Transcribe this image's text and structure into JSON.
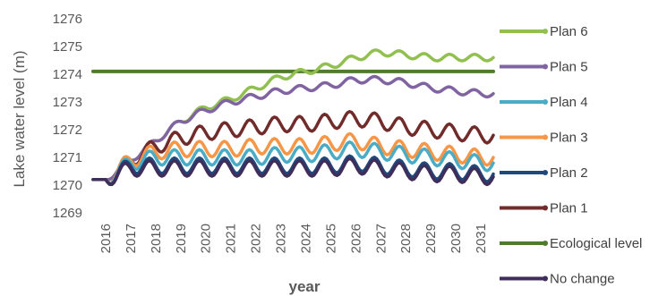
{
  "chart_data": {
    "type": "line",
    "xlabel": "year",
    "ylabel": "Lake water level (m)",
    "ylim": [
      1269,
      1276
    ],
    "yticks": [
      "1269",
      "1270",
      "1271",
      "1272",
      "1273",
      "1274",
      "1275",
      "1276"
    ],
    "x": [
      "2016",
      "2017",
      "2018",
      "2019",
      "2020",
      "2021",
      "2022",
      "2023",
      "2024",
      "2025",
      "2026",
      "2027",
      "2028",
      "2029",
      "2030",
      "2031"
    ],
    "grid": false,
    "legend_position": "right",
    "series": [
      {
        "name": "Plan 6",
        "color": "#92C050",
        "values": [
          1270.2,
          1270.9,
          1271.6,
          1272.3,
          1272.8,
          1273.1,
          1273.5,
          1273.9,
          1274.1,
          1274.3,
          1274.6,
          1274.8,
          1274.7,
          1274.6,
          1274.6,
          1274.6
        ]
      },
      {
        "name": "Plan 5",
        "color": "#8064A2",
        "values": [
          1270.2,
          1270.9,
          1271.6,
          1272.3,
          1272.7,
          1273.0,
          1273.2,
          1273.4,
          1273.5,
          1273.6,
          1273.8,
          1273.8,
          1273.7,
          1273.5,
          1273.4,
          1273.3
        ]
      },
      {
        "name": "Plan 4",
        "color": "#4BACC6",
        "values": [
          1270.2,
          1270.8,
          1271.0,
          1271.0,
          1271.0,
          1271.0,
          1271.0,
          1271.1,
          1271.1,
          1271.2,
          1271.3,
          1271.2,
          1271.1,
          1271.0,
          1270.9,
          1270.8
        ]
      },
      {
        "name": "Plan 3",
        "color": "#F79646",
        "values": [
          1270.2,
          1270.9,
          1271.2,
          1271.3,
          1271.3,
          1271.3,
          1271.4,
          1271.4,
          1271.4,
          1271.5,
          1271.6,
          1271.4,
          1271.3,
          1271.2,
          1271.1,
          1271.0
        ]
      },
      {
        "name": "Plan 2",
        "color": "#1F497D",
        "values": [
          1270.2,
          1270.7,
          1270.7,
          1270.7,
          1270.7,
          1270.7,
          1270.7,
          1270.7,
          1270.7,
          1270.7,
          1270.8,
          1270.7,
          1270.6,
          1270.5,
          1270.5,
          1270.4
        ]
      },
      {
        "name": "Plan 1",
        "color": "#722B2B",
        "values": [
          1270.2,
          1270.9,
          1271.4,
          1271.7,
          1271.9,
          1272.0,
          1272.1,
          1272.2,
          1272.2,
          1272.3,
          1272.4,
          1272.3,
          1272.1,
          1272.0,
          1271.9,
          1271.8
        ]
      },
      {
        "name": "Ecological level",
        "color": "#4F7B2F",
        "values": [
          1274.1,
          1274.1,
          1274.1,
          1274.1,
          1274.1,
          1274.1,
          1274.1,
          1274.1,
          1274.1,
          1274.1,
          1274.1,
          1274.1,
          1274.1,
          1274.1,
          1274.1,
          1274.1
        ]
      },
      {
        "name": "No change",
        "color": "#3F2D5A",
        "values": [
          1270.2,
          1270.6,
          1270.6,
          1270.6,
          1270.6,
          1270.6,
          1270.6,
          1270.6,
          1270.6,
          1270.6,
          1270.7,
          1270.6,
          1270.5,
          1270.4,
          1270.4,
          1270.3
        ]
      }
    ]
  }
}
